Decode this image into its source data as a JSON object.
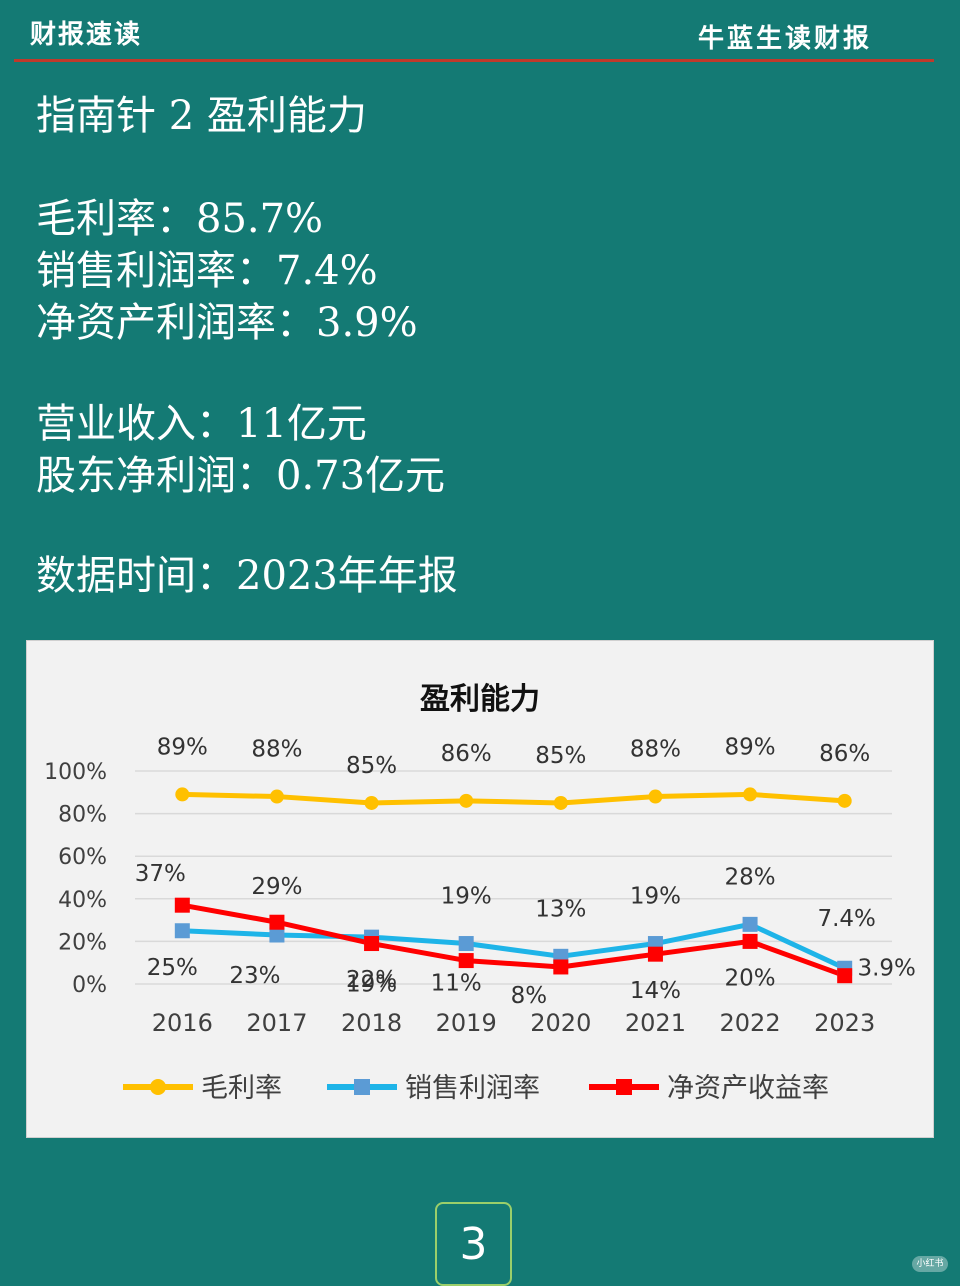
{
  "header": {
    "left_title": "财报速读",
    "right_title": "牛蓝生读财报"
  },
  "intro": {
    "section_title": "指南针 2 盈利能力",
    "lines_ratios": [
      "毛利率：85.7%",
      "销售利润率：7.4%",
      "净资产利润率：3.9%"
    ],
    "lines_income": [
      "营业收入：11亿元",
      "股东净利润：0.73亿元"
    ],
    "data_time": "数据时间：2023年年报"
  },
  "chart_data": {
    "type": "line",
    "title": "盈利能力",
    "categories": [
      "2016",
      "2017",
      "2018",
      "2019",
      "2020",
      "2021",
      "2022",
      "2023"
    ],
    "y_ticks": [
      "0%",
      "20%",
      "40%",
      "60%",
      "80%",
      "100%"
    ],
    "ylim": [
      0,
      100
    ],
    "grid": true,
    "legend_position": "bottom",
    "series": [
      {
        "name": "毛利率",
        "color": "#ffc000",
        "marker": "circle",
        "values": [
          89,
          88,
          85,
          86,
          85,
          88,
          89,
          86
        ],
        "labels": [
          "89%",
          "88%",
          "85%",
          "86%",
          "85%",
          "88%",
          "89%",
          "86%"
        ]
      },
      {
        "name": "销售利润率",
        "color": "#1eb4e8",
        "marker": "square",
        "values": [
          25,
          23,
          22,
          19,
          13,
          19,
          28,
          7.4
        ],
        "labels": [
          "25%",
          "23%",
          "22%",
          "19%",
          "13%",
          "19%",
          "28%",
          "7.4%"
        ]
      },
      {
        "name": "净资产收益率",
        "color": "#ff0000",
        "marker": "square",
        "values": [
          37,
          29,
          19,
          11,
          8,
          14,
          20,
          3.9
        ],
        "labels": [
          "37%",
          "29%",
          "19%",
          "11%",
          "8%",
          "14%",
          "20%",
          "3.9%"
        ]
      }
    ]
  },
  "page_number": "3",
  "watermark": "小红书"
}
